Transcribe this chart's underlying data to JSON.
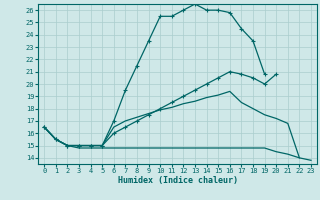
{
  "xlabel": "Humidex (Indice chaleur)",
  "bg_color": "#cfe8e8",
  "line_color": "#006666",
  "grid_color": "#aacece",
  "xlim": [
    -0.5,
    23.5
  ],
  "ylim": [
    13.5,
    26.5
  ],
  "xticks": [
    0,
    1,
    2,
    3,
    4,
    5,
    6,
    7,
    8,
    9,
    10,
    11,
    12,
    13,
    14,
    15,
    16,
    17,
    18,
    19,
    20,
    21,
    22,
    23
  ],
  "yticks": [
    14,
    15,
    16,
    17,
    18,
    19,
    20,
    21,
    22,
    23,
    24,
    25,
    26
  ],
  "line1_x": [
    0,
    1,
    2,
    3,
    4,
    5,
    6,
    7,
    8,
    9,
    10,
    11,
    12,
    13,
    14,
    15,
    16,
    17,
    18,
    19
  ],
  "line1_y": [
    16.5,
    15.5,
    15.0,
    15.0,
    15.0,
    15.0,
    17.0,
    19.5,
    21.5,
    23.5,
    25.5,
    25.5,
    26.0,
    26.5,
    26.0,
    26.0,
    25.8,
    24.5,
    23.5,
    20.8
  ],
  "line2_x": [
    0,
    1,
    2,
    3,
    4,
    5,
    6,
    7,
    8,
    9,
    10,
    11,
    12,
    13,
    14,
    15,
    16,
    17,
    18,
    19,
    20,
    21,
    22,
    23
  ],
  "line2_y": [
    16.5,
    15.5,
    15.0,
    14.8,
    14.8,
    14.8,
    14.8,
    14.8,
    14.8,
    14.8,
    14.8,
    14.8,
    14.8,
    14.8,
    14.8,
    14.8,
    14.8,
    14.8,
    14.8,
    14.8,
    14.5,
    14.3,
    14.0,
    13.8
  ],
  "line3_x": [
    0,
    1,
    2,
    3,
    4,
    5,
    6,
    7,
    8,
    9,
    10,
    11,
    12,
    13,
    14,
    15,
    16,
    17,
    18,
    19,
    20,
    21,
    22
  ],
  "line3_y": [
    16.5,
    15.5,
    15.0,
    15.0,
    15.0,
    15.0,
    16.5,
    17.0,
    17.3,
    17.6,
    17.9,
    18.1,
    18.4,
    18.6,
    18.9,
    19.1,
    19.4,
    18.5,
    18.0,
    17.5,
    17.2,
    16.8,
    14.0
  ],
  "line4_x": [
    0,
    1,
    2,
    3,
    4,
    5,
    6,
    7,
    8,
    9,
    10,
    11,
    12,
    13,
    14,
    15,
    16,
    17,
    18,
    19,
    20
  ],
  "line4_y": [
    16.5,
    15.5,
    15.0,
    15.0,
    15.0,
    15.0,
    16.0,
    16.5,
    17.0,
    17.5,
    18.0,
    18.5,
    19.0,
    19.5,
    20.0,
    20.5,
    21.0,
    20.8,
    20.5,
    20.0,
    20.8
  ]
}
